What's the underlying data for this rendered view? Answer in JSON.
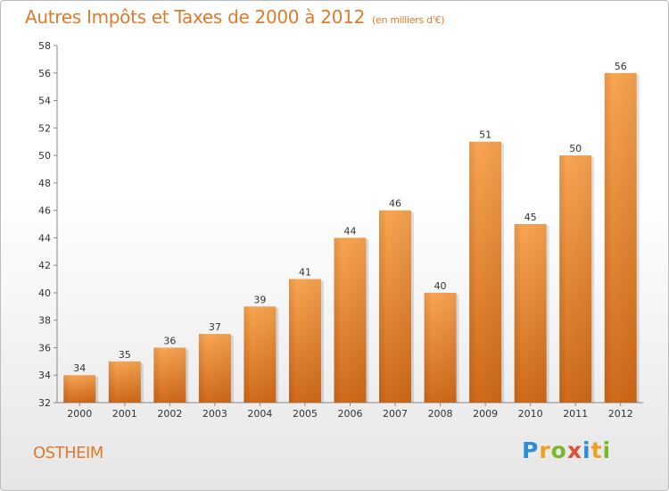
{
  "title": "Autres Impôts et Taxes de 2000 à 2012",
  "unit_note": "(en milliers d'€)",
  "commune": "OSTHEIM",
  "logo": {
    "letters": [
      "P",
      "r",
      "o",
      "x",
      "i",
      "t",
      "i"
    ],
    "colors": [
      "#2a8fd6",
      "#f0a020",
      "#7ab82a",
      "#e0503a",
      "#2a8fd6",
      "#f0a020",
      "#7ab82a"
    ]
  },
  "colors": {
    "accent": "#e07a2c",
    "bar_light": "#f9a552",
    "bar_dark": "#d06a1a"
  },
  "chart_data": {
    "type": "bar",
    "categories": [
      "2000",
      "2001",
      "2002",
      "2003",
      "2004",
      "2005",
      "2006",
      "2007",
      "2008",
      "2009",
      "2010",
      "2011",
      "2012"
    ],
    "values": [
      34,
      35,
      36,
      37,
      39,
      41,
      44,
      46,
      40,
      51,
      45,
      50,
      56
    ],
    "title": "Autres Impôts et Taxes de 2000 à 2012",
    "xlabel": "",
    "ylabel": "",
    "ylim": [
      32,
      58
    ],
    "yticks": [
      32,
      34,
      36,
      38,
      40,
      42,
      44,
      46,
      48,
      50,
      52,
      54,
      56,
      58
    ],
    "data_labels": true,
    "grid": false,
    "legend": "none"
  }
}
